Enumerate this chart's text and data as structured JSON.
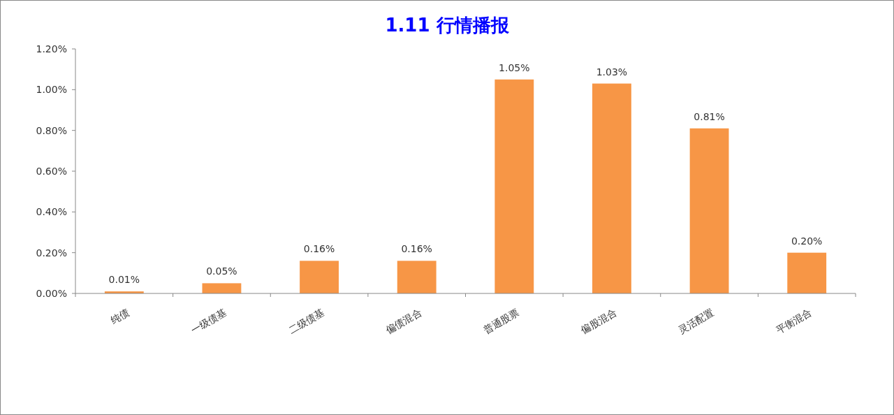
{
  "chart_data": {
    "type": "bar",
    "title": "1.11 行情播报",
    "categories": [
      "纯债",
      "一级债基",
      "二级债基",
      "偏债混合",
      "普通股票",
      "偏股混合",
      "灵活配置",
      "平衡混合"
    ],
    "values": [
      0.01,
      0.05,
      0.16,
      0.16,
      1.05,
      1.03,
      0.81,
      0.2
    ],
    "value_labels": [
      "0.01%",
      "0.05%",
      "0.16%",
      "0.16%",
      "1.05%",
      "1.03%",
      "0.81%",
      "0.20%"
    ],
    "color": "#f79646",
    "ylim": [
      0,
      1.2
    ],
    "yticks": [
      {
        "value": 0,
        "label": "0.00%"
      },
      {
        "value": 0.2,
        "label": "0.20%"
      },
      {
        "value": 0.4,
        "label": "0.40%"
      },
      {
        "value": 0.6,
        "label": "0.60%"
      },
      {
        "value": 0.8,
        "label": "0.80%"
      },
      {
        "value": 1.0,
        "label": "1.00%"
      },
      {
        "value": 1.2,
        "label": "1.20%"
      }
    ],
    "grid": false
  }
}
